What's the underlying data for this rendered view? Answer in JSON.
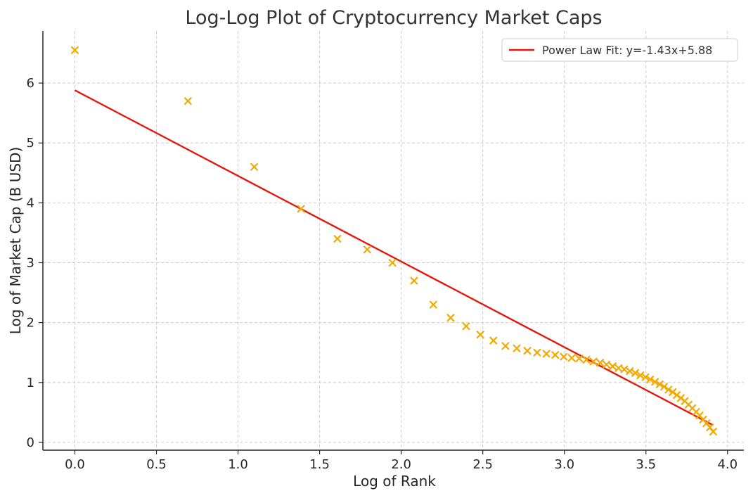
{
  "chart_data": {
    "type": "scatter",
    "title": "Log-Log Plot of Cryptocurrency Market Caps",
    "xlabel": "Log of Rank",
    "ylabel": "Log of Market Cap (B USD)",
    "xlim": [
      -0.196,
      4.1
    ],
    "ylim": [
      -0.13,
      6.87
    ],
    "xticks": [
      0.0,
      0.5,
      1.0,
      1.5,
      2.0,
      2.5,
      3.0,
      3.5,
      4.0
    ],
    "xtick_labels": [
      "0.0",
      "0.5",
      "1.0",
      "1.5",
      "2.0",
      "2.5",
      "3.0",
      "3.5",
      "4.0"
    ],
    "yticks": [
      0,
      1,
      2,
      3,
      4,
      5,
      6
    ],
    "ytick_labels": [
      "0",
      "1",
      "2",
      "3",
      "4",
      "5",
      "6"
    ],
    "grid": true,
    "legend_position": "top-right",
    "colors": {
      "points": "#f2a900",
      "fit": "#e3170a",
      "grid": "#cccccc",
      "axis": "#262626"
    },
    "series": [
      {
        "kind": "scatter",
        "marker": "x",
        "points": [
          [
            0.0,
            6.55
          ],
          [
            0.693,
            5.7
          ],
          [
            1.099,
            4.6
          ],
          [
            1.386,
            3.9
          ],
          [
            1.609,
            3.4
          ],
          [
            1.792,
            3.22
          ],
          [
            1.946,
            3.0
          ],
          [
            2.079,
            2.7
          ],
          [
            2.197,
            2.3
          ],
          [
            2.303,
            2.08
          ],
          [
            2.398,
            1.94
          ],
          [
            2.485,
            1.8
          ],
          [
            2.565,
            1.7
          ],
          [
            2.639,
            1.61
          ],
          [
            2.708,
            1.57
          ],
          [
            2.773,
            1.53
          ],
          [
            2.833,
            1.5
          ],
          [
            2.89,
            1.48
          ],
          [
            2.944,
            1.46
          ],
          [
            2.996,
            1.43
          ],
          [
            3.045,
            1.41
          ],
          [
            3.091,
            1.4
          ],
          [
            3.135,
            1.38
          ],
          [
            3.178,
            1.35
          ],
          [
            3.219,
            1.33
          ],
          [
            3.258,
            1.3
          ],
          [
            3.296,
            1.27
          ],
          [
            3.332,
            1.24
          ],
          [
            3.367,
            1.22
          ],
          [
            3.401,
            1.19
          ],
          [
            3.434,
            1.16
          ],
          [
            3.466,
            1.12
          ],
          [
            3.497,
            1.09
          ],
          [
            3.526,
            1.05
          ],
          [
            3.555,
            1.01
          ],
          [
            3.584,
            0.97
          ],
          [
            3.611,
            0.93
          ],
          [
            3.638,
            0.88
          ],
          [
            3.664,
            0.84
          ],
          [
            3.689,
            0.79
          ],
          [
            3.714,
            0.74
          ],
          [
            3.738,
            0.69
          ],
          [
            3.761,
            0.63
          ],
          [
            3.784,
            0.57
          ],
          [
            3.807,
            0.51
          ],
          [
            3.829,
            0.45
          ],
          [
            3.85,
            0.38
          ],
          [
            3.871,
            0.32
          ],
          [
            3.892,
            0.25
          ],
          [
            3.912,
            0.18
          ]
        ]
      },
      {
        "kind": "line",
        "name": "Power Law Fit: y=-1.43x+5.88",
        "slope": -1.43,
        "intercept": 5.88,
        "x_range": [
          0.0,
          3.912
        ]
      }
    ]
  }
}
